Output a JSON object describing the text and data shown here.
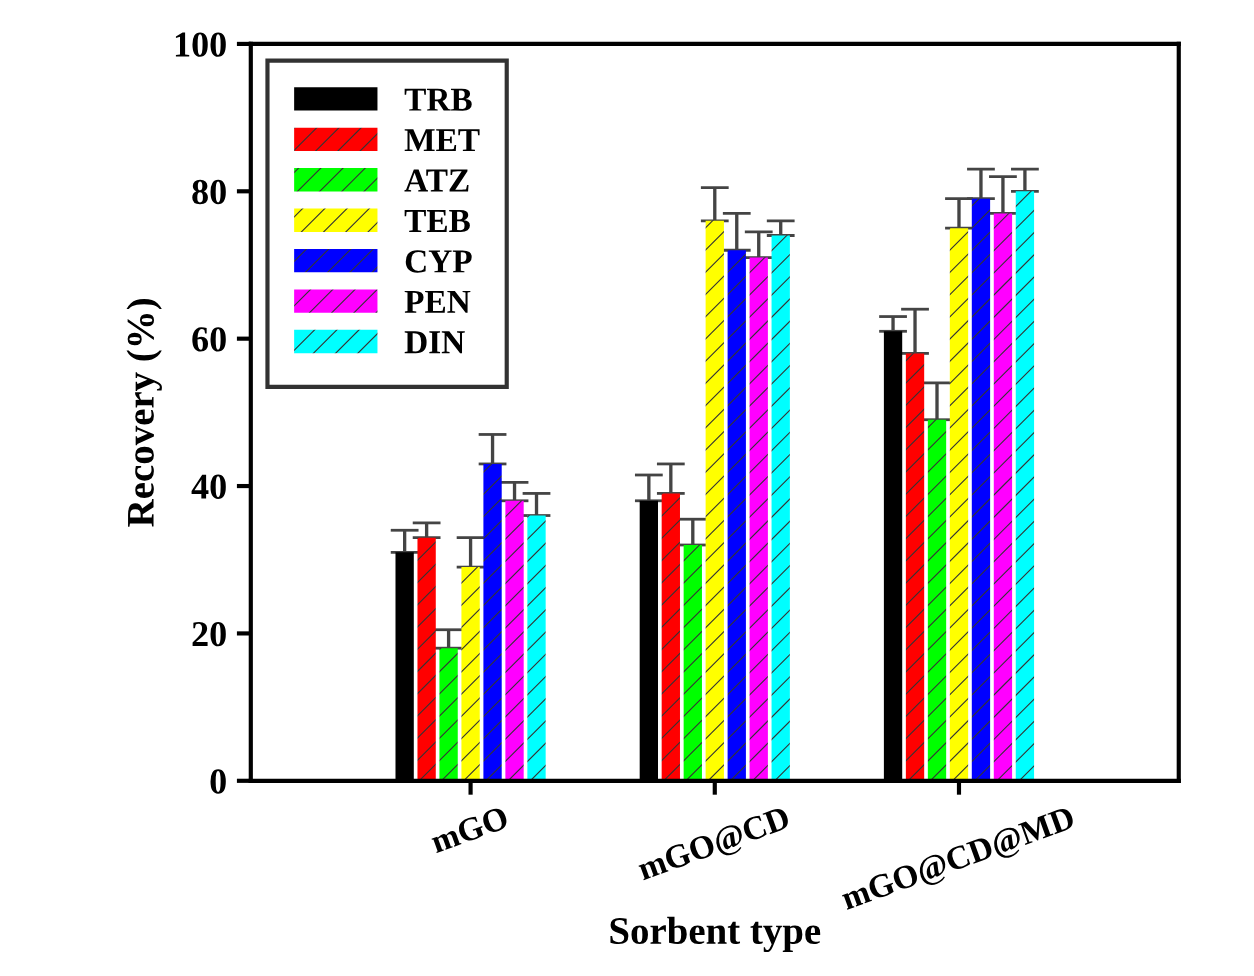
{
  "chart_data": {
    "type": "bar",
    "xlabel": "Sorbent type",
    "ylabel": "Recovery (%)",
    "categories": [
      "mGO",
      "mGO@CD",
      "mGO@CD@MD"
    ],
    "series": [
      {
        "name": "TRB",
        "color": "#000000",
        "values": [
          31,
          38,
          61
        ],
        "errors": [
          [
            31,
            34
          ],
          [
            38,
            41.5
          ],
          [
            61,
            63
          ]
        ]
      },
      {
        "name": "MET",
        "color": "#ff0000",
        "values": [
          33,
          39,
          58
        ],
        "errors": [
          [
            33,
            35
          ],
          [
            39,
            43
          ],
          [
            58,
            64
          ]
        ]
      },
      {
        "name": "ATZ",
        "color": "#00ff00",
        "values": [
          18,
          32,
          49
        ],
        "errors": [
          [
            18,
            20.5
          ],
          [
            32,
            35.5
          ],
          [
            49,
            54
          ]
        ]
      },
      {
        "name": "TEB",
        "color": "#ffff00",
        "values": [
          29,
          76,
          75
        ],
        "errors": [
          [
            29,
            33
          ],
          [
            76,
            80.5
          ],
          [
            75,
            79
          ]
        ]
      },
      {
        "name": "CYP",
        "color": "#0000ff",
        "values": [
          43,
          72,
          79
        ],
        "errors": [
          [
            43,
            47
          ],
          [
            72,
            77
          ],
          [
            79,
            83
          ]
        ]
      },
      {
        "name": "PEN",
        "color": "#ff00ff",
        "values": [
          38,
          71,
          77
        ],
        "errors": [
          [
            38,
            40.5
          ],
          [
            71,
            74.5
          ],
          [
            77,
            82
          ]
        ]
      },
      {
        "name": "DIN",
        "color": "#00ffff",
        "values": [
          36,
          74,
          80
        ],
        "errors": [
          [
            36,
            39
          ],
          [
            74,
            76
          ],
          [
            80,
            83
          ]
        ]
      }
    ],
    "ylim": [
      0,
      100
    ],
    "yticks": [
      0,
      20,
      40,
      60,
      80,
      100
    ],
    "grid": false,
    "legend": "top left"
  }
}
